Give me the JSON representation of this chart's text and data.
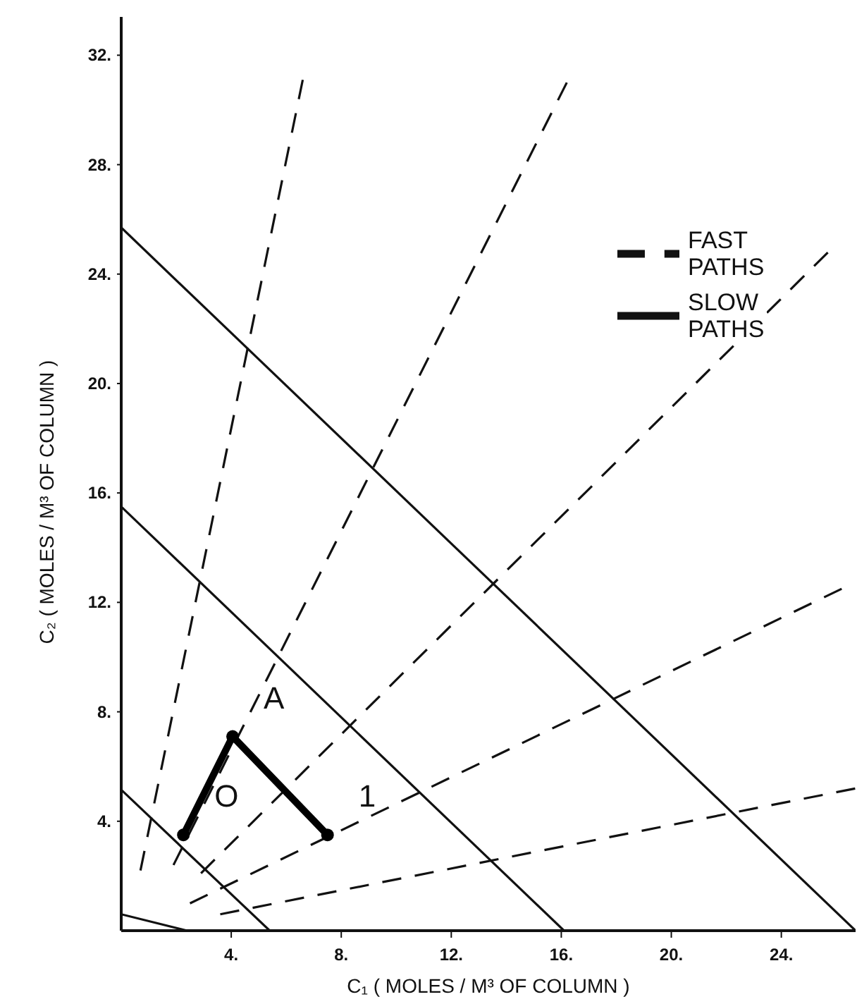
{
  "chart_data": {
    "type": "line",
    "xlabel": "C₁ ( MOLES / M³ OF COLUMN )",
    "ylabel": "C₂ ( MOLES / M³  OF  COLUMN )",
    "xlim": [
      0,
      26.7
    ],
    "ylim": [
      0,
      33.4
    ],
    "xticks": [
      {
        "value": 4,
        "label": "4."
      },
      {
        "value": 8,
        "label": "8."
      },
      {
        "value": 12,
        "label": "12."
      },
      {
        "value": 16,
        "label": "16."
      },
      {
        "value": 20,
        "label": "20."
      },
      {
        "value": 24,
        "label": "24."
      }
    ],
    "yticks": [
      {
        "value": 4,
        "label": "4."
      },
      {
        "value": 8,
        "label": "8."
      },
      {
        "value": 12,
        "label": "12."
      },
      {
        "value": 16,
        "label": "16."
      },
      {
        "value": 20,
        "label": "20."
      },
      {
        "value": 24,
        "label": "24."
      },
      {
        "value": 28,
        "label": "28."
      },
      {
        "value": 32,
        "label": "32."
      }
    ],
    "grid": false,
    "legend": "top right",
    "marker": "none",
    "series": [
      {
        "name": "FAST PATHS",
        "color": "#111111",
        "line_style": "dashed",
        "x": [
          0.7,
          6.6
        ],
        "values": [
          2.2,
          31.1
        ]
      },
      {
        "color": "#111111",
        "line_style": "dashed",
        "x": [
          1.9,
          16.2
        ],
        "values": [
          2.4,
          31.0
        ]
      },
      {
        "color": "#111111",
        "line_style": "dashed",
        "x": [
          2.9,
          25.7
        ],
        "values": [
          2.1,
          24.8
        ]
      },
      {
        "color": "#111111",
        "line_style": "dashed",
        "x": [
          2.5,
          26.2
        ],
        "values": [
          1.0,
          12.5
        ]
      },
      {
        "color": "#111111",
        "line_style": "dashed",
        "x": [
          3.6,
          26.7
        ],
        "values": [
          0.6,
          5.2
        ]
      },
      {
        "name": "SLOW PATHS",
        "color": "#111111",
        "line_style": "solid",
        "x": [
          0,
          26.7
        ],
        "values": [
          25.7,
          0
        ]
      },
      {
        "color": "#111111",
        "line_style": "solid",
        "x": [
          0,
          16.1
        ],
        "values": [
          15.5,
          0
        ]
      },
      {
        "color": "#111111",
        "line_style": "solid",
        "x": [
          0,
          5.4
        ],
        "values": [
          5.15,
          0
        ]
      },
      {
        "color": "#111111",
        "line_style": "solid",
        "x": [
          0,
          2.4
        ],
        "values": [
          0.6,
          0
        ]
      },
      {
        "color": "#000000",
        "line_style": "solid",
        "marker": "circle",
        "x": [
          7.5,
          4.05,
          2.26
        ],
        "values": [
          3.5,
          7.1,
          3.5
        ]
      }
    ],
    "annotations": [
      {
        "text": "A",
        "x": 4.05,
        "y": 7.1
      },
      {
        "text": "O",
        "x": 2.26,
        "y": 3.5
      },
      {
        "text": "1",
        "x": 7.5,
        "y": 3.5
      }
    ]
  }
}
